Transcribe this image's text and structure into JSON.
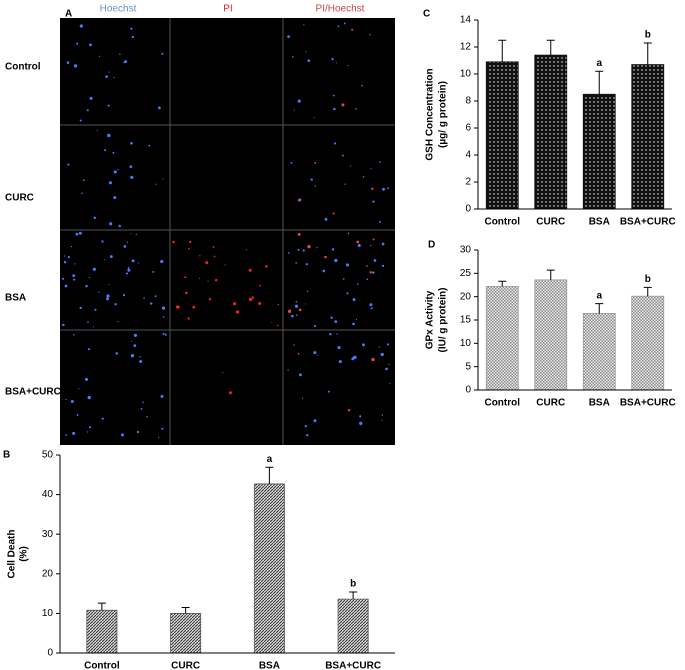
{
  "panel_a": {
    "label": "A",
    "columns": [
      "Hoechst",
      "PI",
      "PI/Hoechst"
    ],
    "rows": [
      "Control",
      "CURC",
      "BSA",
      "BSA+CURC"
    ]
  },
  "chart_data": [
    {
      "type": "bar",
      "panel_label": "B",
      "y_label": [
        "Cell Death",
        "(%)"
      ],
      "categories": [
        "Control",
        "CURC",
        "BSA",
        "BSA+CURC"
      ],
      "values": [
        10.8,
        10,
        42.7,
        13.6
      ],
      "errors": [
        1.8,
        1.5,
        4.2,
        1.8
      ],
      "bar_labels": [
        null,
        null,
        "a",
        "b"
      ],
      "color": "#555555",
      "ylim": [
        0,
        50
      ],
      "yticks": [
        0,
        10,
        20,
        30,
        40,
        50
      ]
    },
    {
      "type": "bar",
      "panel_label": "C",
      "y_label": [
        "GSH Concentration",
        "(µg/ g protein)"
      ],
      "categories": [
        "Control",
        "CURC",
        "BSA",
        "BSA+CURC"
      ],
      "values": [
        10.9,
        11.4,
        8.5,
        10.7
      ],
      "errors": [
        1.6,
        1.1,
        1.7,
        1.6
      ],
      "bar_labels": [
        null,
        null,
        "a",
        "b"
      ],
      "color": "#111111",
      "ylim": [
        0,
        14
      ],
      "yticks": [
        0,
        2,
        4,
        6,
        8,
        10,
        12,
        14
      ]
    },
    {
      "type": "bar",
      "panel_label": "D",
      "y_label": [
        "GPx Activity",
        "(IU/ g protein)"
      ],
      "categories": [
        "Control",
        "CURC",
        "BSA",
        "BSA+CURC"
      ],
      "values": [
        22.2,
        23.6,
        16.4,
        20.1
      ],
      "errors": [
        1.1,
        2.1,
        2.1,
        1.9
      ],
      "bar_labels": [
        null,
        null,
        "a",
        "b"
      ],
      "color": "#999999",
      "ylim": [
        0,
        30
      ],
      "yticks": [
        0,
        5,
        10,
        15,
        20,
        25,
        30
      ]
    }
  ]
}
